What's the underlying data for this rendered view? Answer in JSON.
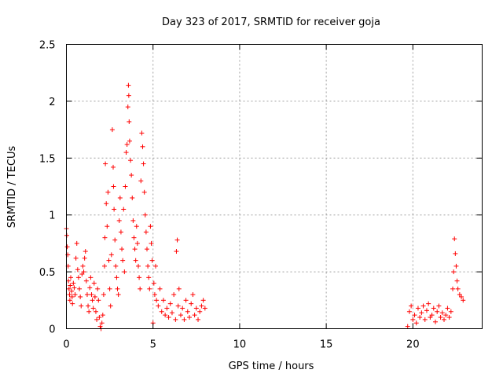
{
  "chart_data": {
    "type": "scatter",
    "title": "Day 323 of 2017, SRMTID for receiver goja",
    "xlabel": "GPS time / hours",
    "ylabel": "SRMTID / TECUs",
    "xlim": [
      0,
      24
    ],
    "ylim": [
      0,
      2.5
    ],
    "xticks": [
      0,
      5,
      10,
      15,
      20
    ],
    "xtick_labels": [
      "0",
      "5",
      "10",
      "15",
      "20"
    ],
    "yticks": [
      0,
      0.5,
      1,
      1.5,
      2,
      2.5
    ],
    "ytick_labels": [
      "0",
      "0.5",
      "1",
      "1.5",
      "2",
      "2.5"
    ],
    "grid": true,
    "marker": "+",
    "color": "#ff0000",
    "series": [
      {
        "name": "SRMTID",
        "points": [
          [
            0.0,
            0.88
          ],
          [
            0.02,
            0.82
          ],
          [
            0.05,
            0.72
          ],
          [
            0.08,
            0.65
          ],
          [
            0.1,
            0.55
          ],
          [
            0.12,
            0.42
          ],
          [
            0.15,
            0.35
          ],
          [
            0.18,
            0.3
          ],
          [
            0.2,
            0.25
          ],
          [
            0.22,
            0.38
          ],
          [
            0.25,
            0.45
          ],
          [
            0.3,
            0.33
          ],
          [
            0.33,
            0.28
          ],
          [
            0.35,
            0.22
          ],
          [
            0.4,
            0.4
          ],
          [
            0.45,
            0.36
          ],
          [
            0.5,
            0.3
          ],
          [
            0.55,
            0.62
          ],
          [
            0.6,
            0.75
          ],
          [
            0.65,
            0.52
          ],
          [
            0.7,
            0.45
          ],
          [
            0.75,
            0.35
          ],
          [
            0.8,
            0.28
          ],
          [
            0.85,
            0.2
          ],
          [
            0.9,
            0.48
          ],
          [
            0.95,
            0.55
          ],
          [
            1.0,
            0.5
          ],
          [
            1.05,
            0.62
          ],
          [
            1.1,
            0.68
          ],
          [
            1.15,
            0.42
          ],
          [
            1.2,
            0.3
          ],
          [
            1.25,
            0.2
          ],
          [
            1.3,
            0.15
          ],
          [
            1.35,
            0.36
          ],
          [
            1.4,
            0.45
          ],
          [
            1.45,
            0.3
          ],
          [
            1.5,
            0.25
          ],
          [
            1.55,
            0.18
          ],
          [
            1.6,
            0.4
          ],
          [
            1.65,
            0.28
          ],
          [
            1.7,
            0.15
          ],
          [
            1.75,
            0.08
          ],
          [
            1.8,
            0.35
          ],
          [
            1.85,
            0.25
          ],
          [
            1.9,
            0.1
          ],
          [
            1.95,
            0.02
          ],
          [
            2.0,
            0.0
          ],
          [
            2.05,
            0.05
          ],
          [
            2.1,
            0.12
          ],
          [
            2.15,
            0.3
          ],
          [
            2.2,
            0.55
          ],
          [
            2.22,
            0.8
          ],
          [
            2.25,
            1.45
          ],
          [
            2.3,
            1.1
          ],
          [
            2.35,
            0.9
          ],
          [
            2.4,
            1.2
          ],
          [
            2.45,
            0.6
          ],
          [
            2.5,
            0.35
          ],
          [
            2.55,
            0.2
          ],
          [
            2.6,
            0.65
          ],
          [
            2.65,
            1.75
          ],
          [
            2.7,
            1.42
          ],
          [
            2.72,
            1.25
          ],
          [
            2.75,
            1.05
          ],
          [
            2.8,
            0.78
          ],
          [
            2.85,
            0.55
          ],
          [
            2.9,
            0.45
          ],
          [
            2.95,
            0.35
          ],
          [
            3.0,
            0.3
          ],
          [
            3.05,
            0.95
          ],
          [
            3.1,
            1.15
          ],
          [
            3.15,
            0.85
          ],
          [
            3.2,
            0.7
          ],
          [
            3.25,
            0.6
          ],
          [
            3.3,
            1.05
          ],
          [
            3.35,
            0.5
          ],
          [
            3.4,
            1.25
          ],
          [
            3.45,
            1.55
          ],
          [
            3.5,
            1.62
          ],
          [
            3.55,
            1.95
          ],
          [
            3.58,
            2.14
          ],
          [
            3.6,
            2.05
          ],
          [
            3.62,
            1.82
          ],
          [
            3.65,
            1.65
          ],
          [
            3.7,
            1.48
          ],
          [
            3.75,
            1.35
          ],
          [
            3.8,
            1.15
          ],
          [
            3.85,
            0.95
          ],
          [
            3.9,
            0.8
          ],
          [
            3.95,
            0.7
          ],
          [
            4.0,
            0.6
          ],
          [
            4.05,
            0.9
          ],
          [
            4.1,
            0.75
          ],
          [
            4.15,
            0.55
          ],
          [
            4.2,
            0.45
          ],
          [
            4.25,
            0.35
          ],
          [
            4.3,
            1.3
          ],
          [
            4.35,
            1.72
          ],
          [
            4.4,
            1.6
          ],
          [
            4.45,
            1.45
          ],
          [
            4.5,
            1.2
          ],
          [
            4.55,
            1.0
          ],
          [
            4.6,
            0.85
          ],
          [
            4.65,
            0.7
          ],
          [
            4.7,
            0.55
          ],
          [
            4.75,
            0.45
          ],
          [
            4.8,
            0.35
          ],
          [
            4.85,
            0.9
          ],
          [
            4.9,
            0.75
          ],
          [
            4.95,
            0.6
          ],
          [
            5.0,
            0.05
          ],
          [
            5.05,
            0.4
          ],
          [
            5.1,
            0.3
          ],
          [
            5.15,
            0.55
          ],
          [
            5.2,
            0.25
          ],
          [
            5.3,
            0.2
          ],
          [
            5.4,
            0.35
          ],
          [
            5.5,
            0.15
          ],
          [
            5.6,
            0.25
          ],
          [
            5.7,
            0.12
          ],
          [
            5.8,
            0.18
          ],
          [
            5.9,
            0.1
          ],
          [
            6.0,
            0.22
          ],
          [
            6.1,
            0.14
          ],
          [
            6.2,
            0.3
          ],
          [
            6.3,
            0.08
          ],
          [
            6.35,
            0.68
          ],
          [
            6.4,
            0.78
          ],
          [
            6.45,
            0.2
          ],
          [
            6.5,
            0.35
          ],
          [
            6.6,
            0.12
          ],
          [
            6.7,
            0.18
          ],
          [
            6.8,
            0.08
          ],
          [
            6.9,
            0.25
          ],
          [
            7.0,
            0.15
          ],
          [
            7.1,
            0.1
          ],
          [
            7.2,
            0.22
          ],
          [
            7.3,
            0.3
          ],
          [
            7.4,
            0.12
          ],
          [
            7.5,
            0.18
          ],
          [
            7.6,
            0.08
          ],
          [
            7.7,
            0.15
          ],
          [
            7.8,
            0.2
          ],
          [
            7.9,
            0.25
          ],
          [
            8.0,
            0.18
          ],
          [
            19.7,
            0.02
          ],
          [
            19.8,
            0.15
          ],
          [
            19.9,
            0.2
          ],
          [
            20.0,
            0.08
          ],
          [
            20.1,
            0.12
          ],
          [
            20.2,
            0.05
          ],
          [
            20.3,
            0.18
          ],
          [
            20.4,
            0.1
          ],
          [
            20.5,
            0.14
          ],
          [
            20.6,
            0.2
          ],
          [
            20.7,
            0.08
          ],
          [
            20.8,
            0.16
          ],
          [
            20.9,
            0.22
          ],
          [
            21.0,
            0.1
          ],
          [
            21.1,
            0.12
          ],
          [
            21.2,
            0.18
          ],
          [
            21.3,
            0.06
          ],
          [
            21.4,
            0.15
          ],
          [
            21.5,
            0.2
          ],
          [
            21.6,
            0.1
          ],
          [
            21.7,
            0.14
          ],
          [
            21.8,
            0.08
          ],
          [
            21.9,
            0.12
          ],
          [
            22.0,
            0.18
          ],
          [
            22.1,
            0.1
          ],
          [
            22.2,
            0.15
          ],
          [
            22.3,
            0.35
          ],
          [
            22.35,
            0.5
          ],
          [
            22.4,
            0.79
          ],
          [
            22.45,
            0.66
          ],
          [
            22.5,
            0.55
          ],
          [
            22.55,
            0.42
          ],
          [
            22.6,
            0.35
          ],
          [
            22.7,
            0.3
          ],
          [
            22.8,
            0.28
          ],
          [
            22.9,
            0.25
          ]
        ]
      }
    ]
  }
}
